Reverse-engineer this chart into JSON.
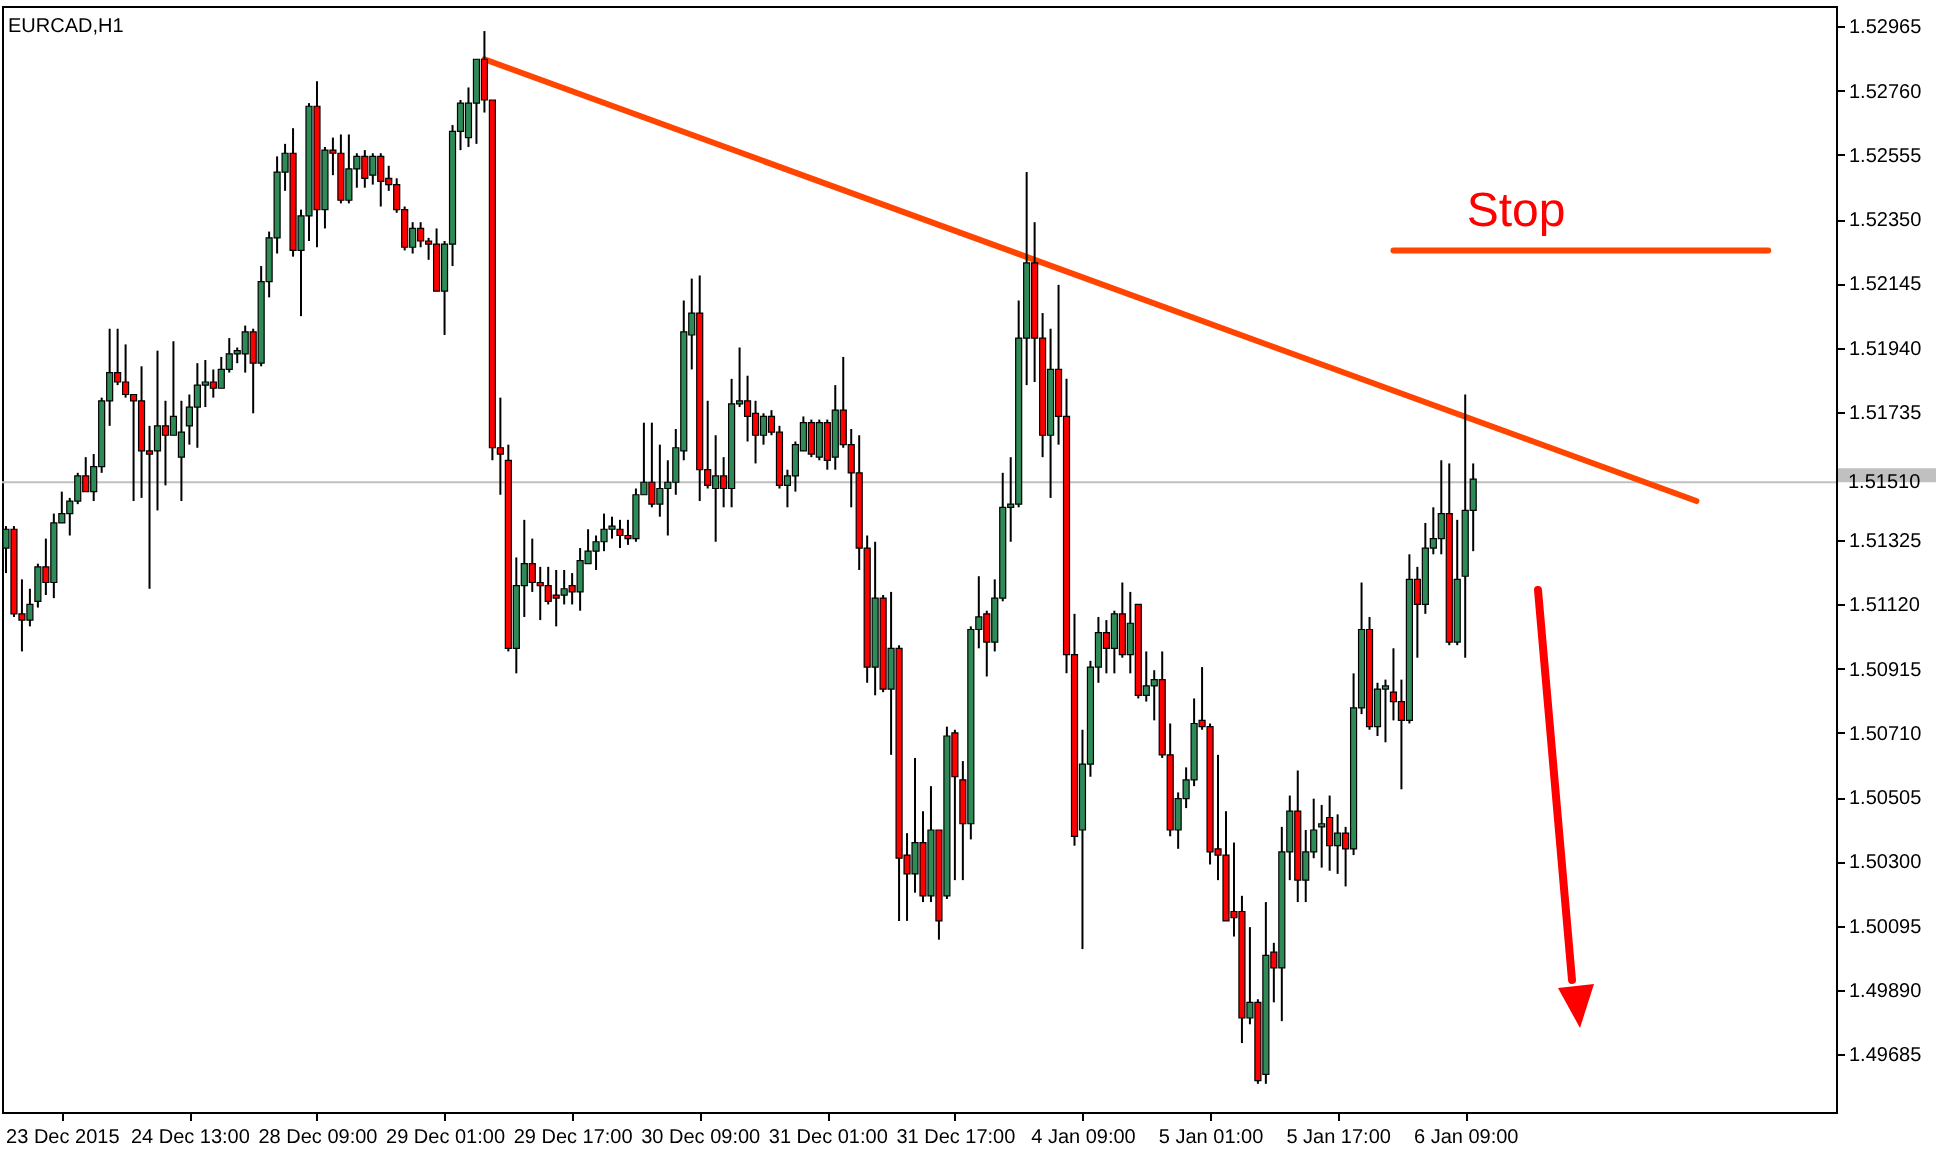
{
  "chart_data": {
    "type": "candlestick",
    "title": "EURCAD,H1",
    "categories": [
      null,
      null,
      null,
      null,
      null,
      null,
      null,
      "23 Dec 2015",
      null,
      null,
      null,
      null,
      null,
      null,
      null,
      null,
      null,
      null,
      null,
      null,
      null,
      null,
      null,
      "24 Dec 13:00",
      null,
      null,
      null,
      null,
      null,
      null,
      null,
      null,
      null,
      null,
      null,
      null,
      null,
      null,
      null,
      "28 Dec 09:00",
      null,
      null,
      null,
      null,
      null,
      null,
      null,
      null,
      null,
      null,
      null,
      null,
      null,
      null,
      null,
      "29 Dec 01:00",
      null,
      null,
      null,
      null,
      null,
      null,
      null,
      null,
      null,
      null,
      null,
      null,
      null,
      null,
      null,
      "29 Dec 17:00",
      null,
      null,
      null,
      null,
      null,
      null,
      null,
      null,
      null,
      null,
      null,
      null,
      null,
      null,
      null,
      "30 Dec 09:00",
      null,
      null,
      null,
      null,
      null,
      null,
      null,
      null,
      null,
      null,
      null,
      null,
      null,
      null,
      null,
      "31 Dec 01:00",
      null,
      null,
      null,
      null,
      null,
      null,
      null,
      null,
      null,
      null,
      null,
      null,
      null,
      null,
      null,
      "31 Dec 17:00",
      null,
      null,
      null,
      null,
      null,
      null,
      null,
      null,
      null,
      null,
      null,
      null,
      null,
      null,
      null,
      "4 Jan 09:00",
      null,
      null,
      null,
      null,
      null,
      null,
      null,
      null,
      null,
      null,
      null,
      null,
      null,
      null,
      null,
      "5 Jan 01:00",
      null,
      null,
      null,
      null,
      null,
      null,
      null,
      null,
      null,
      null,
      null,
      null,
      null,
      null,
      null,
      "5 Jan 17:00",
      null,
      null,
      null,
      null,
      null,
      null,
      null,
      null,
      null,
      null,
      null,
      null,
      null,
      null,
      null,
      "6 Jan 09:00",
      null,
      null,
      null,
      null,
      null,
      null,
      null,
      null,
      null,
      null,
      null,
      null,
      null,
      null,
      null,
      null,
      null,
      null,
      null,
      null,
      null,
      null,
      null,
      null,
      null,
      null,
      null,
      null,
      null,
      null,
      null,
      null,
      null,
      null,
      null,
      null,
      null,
      null,
      null,
      null,
      null,
      null,
      null,
      null,
      null,
      null
    ],
    "ohlc": [
      [
        1.513,
        1.5137,
        1.5122,
        1.5136
      ],
      [
        1.5136,
        1.5137,
        1.5108,
        1.5109
      ],
      [
        1.5109,
        1.512,
        1.5097,
        1.5107
      ],
      [
        1.5107,
        1.5117,
        1.5105,
        1.5112
      ],
      [
        1.5113,
        1.5125,
        1.5111,
        1.5124
      ],
      [
        1.5124,
        1.5133,
        1.5115,
        1.5119
      ],
      [
        1.5119,
        1.5141,
        1.5114,
        1.5138
      ],
      [
        1.5138,
        1.5148,
        1.5138,
        1.5141
      ],
      [
        1.5141,
        1.5146,
        1.5134,
        1.5145
      ],
      [
        1.5145,
        1.5154,
        1.5144,
        1.5153
      ],
      [
        1.5153,
        1.5159,
        1.5148,
        1.5148
      ],
      [
        1.5148,
        1.516,
        1.5145,
        1.5156
      ],
      [
        1.5156,
        1.5178,
        1.5154,
        1.5177
      ],
      [
        1.5177,
        1.52,
        1.5169,
        1.5186
      ],
      [
        1.5186,
        1.52,
        1.5182,
        1.5183
      ],
      [
        1.5183,
        1.5195,
        1.5178,
        1.5179
      ],
      [
        1.5179,
        1.5179,
        1.5145,
        1.5177
      ],
      [
        1.5177,
        1.5188,
        1.5146,
        1.5161
      ],
      [
        1.5161,
        1.5169,
        1.5117,
        1.516
      ],
      [
        1.5161,
        1.5193,
        1.5142,
        1.5169
      ],
      [
        1.5169,
        1.5177,
        1.515,
        1.5166
      ],
      [
        1.5166,
        1.5196,
        1.5166,
        1.5172
      ],
      [
        1.5159,
        1.5177,
        1.5145,
        1.5167
      ],
      [
        1.5169,
        1.5179,
        1.5163,
        1.5175
      ],
      [
        1.5175,
        1.5189,
        1.5162,
        1.5182
      ],
      [
        1.5182,
        1.519,
        1.5175,
        1.5183
      ],
      [
        1.5183,
        1.5187,
        1.5178,
        1.5181
      ],
      [
        1.5181,
        1.5191,
        1.5181,
        1.5187
      ],
      [
        1.5187,
        1.5197,
        1.5186,
        1.5192
      ],
      [
        1.5192,
        1.5194,
        1.5189,
        1.5193
      ],
      [
        1.5192,
        1.5201,
        1.5186,
        1.5199
      ],
      [
        1.5199,
        1.52,
        1.5173,
        1.5189
      ],
      [
        1.5189,
        1.522,
        1.5188,
        1.5215
      ],
      [
        1.5215,
        1.5231,
        1.521,
        1.5229
      ],
      [
        1.5229,
        1.5255,
        1.5224,
        1.525
      ],
      [
        1.525,
        1.5259,
        1.5244,
        1.5256
      ],
      [
        1.5256,
        1.5264,
        1.5223,
        1.5225
      ],
      [
        1.5225,
        1.5238,
        1.5204,
        1.5236
      ],
      [
        1.5236,
        1.5272,
        1.5228,
        1.5271
      ],
      [
        1.5271,
        1.5279,
        1.5226,
        1.5238
      ],
      [
        1.5238,
        1.5258,
        1.5232,
        1.5257
      ],
      [
        1.5257,
        1.5261,
        1.5249,
        1.5256
      ],
      [
        1.5256,
        1.5262,
        1.524,
        1.5241
      ],
      [
        1.5241,
        1.5262,
        1.524,
        1.5251
      ],
      [
        1.5251,
        1.5256,
        1.5245,
        1.5255
      ],
      [
        1.5255,
        1.5257,
        1.5245,
        1.5248
      ],
      [
        1.5249,
        1.5256,
        1.5246,
        1.5255
      ],
      [
        1.5255,
        1.5256,
        1.5239,
        1.5247
      ],
      [
        1.5248,
        1.5252,
        1.5244,
        1.5246
      ],
      [
        1.5246,
        1.5248,
        1.5237,
        1.5238
      ],
      [
        1.5238,
        1.5239,
        1.5225,
        1.5226
      ],
      [
        1.5226,
        1.5234,
        1.5224,
        1.5232
      ],
      [
        1.5232,
        1.5234,
        1.5226,
        1.5228
      ],
      [
        1.5228,
        1.5229,
        1.5222,
        1.5227
      ],
      [
        1.5227,
        1.5232,
        1.5212,
        1.5212
      ],
      [
        1.5212,
        1.5228,
        1.5198,
        1.5227
      ],
      [
        1.5227,
        1.5265,
        1.522,
        1.5263
      ],
      [
        1.5263,
        1.5273,
        1.5257,
        1.5272
      ],
      [
        1.5261,
        1.5277,
        1.5258,
        1.5272
      ],
      [
        1.5272,
        1.5286,
        1.5259,
        1.5286
      ],
      [
        1.5286,
        1.5295,
        1.5269,
        1.5273
      ],
      [
        1.5273,
        1.5273,
        1.5158,
        1.5162
      ],
      [
        1.5162,
        1.5178,
        1.5147,
        1.516
      ],
      [
        1.5158,
        1.5163,
        1.5097,
        1.5098
      ],
      [
        1.5098,
        1.5127,
        1.509,
        1.5118
      ],
      [
        1.5118,
        1.5139,
        1.5108,
        1.5125
      ],
      [
        1.5125,
        1.5133,
        1.5116,
        1.5119
      ],
      [
        1.5119,
        1.5124,
        1.5107,
        1.5118
      ],
      [
        1.5118,
        1.5124,
        1.5112,
        1.5113
      ],
      [
        1.5115,
        1.5123,
        1.5105,
        1.5114
      ],
      [
        1.5115,
        1.5123,
        1.5112,
        1.5117
      ],
      [
        1.5118,
        1.5122,
        1.5112,
        1.5116
      ],
      [
        1.5116,
        1.513,
        1.511,
        1.5126
      ],
      [
        1.5125,
        1.5136,
        1.5125,
        1.5129
      ],
      [
        1.5129,
        1.5134,
        1.5123,
        1.5132
      ],
      [
        1.5132,
        1.5141,
        1.5129,
        1.5136
      ],
      [
        1.5136,
        1.514,
        1.5133,
        1.5137
      ],
      [
        1.5136,
        1.5139,
        1.513,
        1.5134
      ],
      [
        1.5134,
        1.5139,
        1.5131,
        1.5133
      ],
      [
        1.5133,
        1.5149,
        1.5132,
        1.5147
      ],
      [
        1.5147,
        1.517,
        1.5147,
        1.5151
      ],
      [
        1.5151,
        1.517,
        1.5143,
        1.5144
      ],
      [
        1.5144,
        1.5163,
        1.514,
        1.5149
      ],
      [
        1.5149,
        1.5158,
        1.5134,
        1.5151
      ],
      [
        1.5151,
        1.5168,
        1.5147,
        1.5162
      ],
      [
        1.5161,
        1.5209,
        1.5158,
        1.5199
      ],
      [
        1.5198,
        1.5216,
        1.5187,
        1.5205
      ],
      [
        1.5205,
        1.5217,
        1.5145,
        1.5155
      ],
      [
        1.5155,
        1.5177,
        1.5149,
        1.515
      ],
      [
        1.5149,
        1.5166,
        1.5132,
        1.5153
      ],
      [
        1.5153,
        1.5159,
        1.5143,
        1.5149
      ],
      [
        1.5149,
        1.5184,
        1.5143,
        1.5176
      ],
      [
        1.5176,
        1.5194,
        1.5175,
        1.5177
      ],
      [
        1.5177,
        1.5185,
        1.5164,
        1.5172
      ],
      [
        1.5173,
        1.5177,
        1.5157,
        1.5166
      ],
      [
        1.5166,
        1.5173,
        1.5163,
        1.5172
      ],
      [
        1.5172,
        1.5174,
        1.5166,
        1.5167
      ],
      [
        1.5167,
        1.5169,
        1.5149,
        1.515
      ],
      [
        1.515,
        1.5155,
        1.5143,
        1.5153
      ],
      [
        1.5153,
        1.5164,
        1.5148,
        1.5163
      ],
      [
        1.5161,
        1.5172,
        1.5161,
        1.517
      ],
      [
        1.517,
        1.5171,
        1.5159,
        1.516
      ],
      [
        1.5159,
        1.5171,
        1.5158,
        1.517
      ],
      [
        1.517,
        1.5171,
        1.5155,
        1.5158
      ],
      [
        1.5159,
        1.5182,
        1.5155,
        1.5174
      ],
      [
        1.5174,
        1.5191,
        1.5162,
        1.5163
      ],
      [
        1.5163,
        1.5168,
        1.5143,
        1.5154
      ],
      [
        1.5154,
        1.5166,
        1.5123,
        1.513
      ],
      [
        1.513,
        1.5134,
        1.5087,
        1.5092
      ],
      [
        1.5092,
        1.5132,
        1.5083,
        1.5114
      ],
      [
        1.5114,
        1.5115,
        1.5084,
        1.5085
      ],
      [
        1.5085,
        1.5116,
        1.5064,
        1.5098
      ],
      [
        1.5098,
        1.5099,
        1.5011,
        1.5031
      ],
      [
        1.5032,
        1.5039,
        1.5011,
        1.5026
      ],
      [
        1.5026,
        1.5063,
        1.502,
        1.5036
      ],
      [
        1.5036,
        1.5046,
        1.5017,
        1.5019
      ],
      [
        1.5019,
        1.5054,
        1.5017,
        1.504
      ],
      [
        1.504,
        1.504,
        1.5005,
        1.5011
      ],
      [
        1.5019,
        1.5073,
        1.5018,
        1.507
      ],
      [
        1.5071,
        1.5072,
        1.5024,
        1.5057
      ],
      [
        1.5056,
        1.5062,
        1.5024,
        1.5042
      ],
      [
        1.5042,
        1.5105,
        1.5037,
        1.5104
      ],
      [
        1.5104,
        1.5121,
        1.5098,
        1.5108
      ],
      [
        1.5109,
        1.511,
        1.5089,
        1.51
      ],
      [
        1.51,
        1.512,
        1.5097,
        1.5114
      ],
      [
        1.5114,
        1.5154,
        1.5113,
        1.5143
      ],
      [
        1.5143,
        1.5159,
        1.5132,
        1.5144
      ],
      [
        1.5144,
        1.5209,
        1.5143,
        1.5197
      ],
      [
        1.5197,
        1.525,
        1.5182,
        1.5221
      ],
      [
        1.5221,
        1.5234,
        1.5183,
        1.5197
      ],
      [
        1.5197,
        1.5205,
        1.5159,
        1.5166
      ],
      [
        1.5166,
        1.52,
        1.5146,
        1.5187
      ],
      [
        1.5187,
        1.5214,
        1.5163,
        1.5172
      ],
      [
        1.5172,
        1.5184,
        1.509,
        1.5096
      ],
      [
        1.5096,
        1.5109,
        1.5035,
        1.5038
      ],
      [
        1.504,
        1.5072,
        1.5002,
        1.5061
      ],
      [
        1.5061,
        1.5094,
        1.5057,
        1.5092
      ],
      [
        1.5092,
        1.5108,
        1.5087,
        1.5103
      ],
      [
        1.5103,
        1.5107,
        1.509,
        1.5098
      ],
      [
        1.5098,
        1.511,
        1.509,
        1.5109
      ],
      [
        1.5109,
        1.5119,
        1.5095,
        1.5096
      ],
      [
        1.5096,
        1.5116,
        1.509,
        1.5106
      ],
      [
        1.5112,
        1.5112,
        1.5082,
        1.5083
      ],
      [
        1.5083,
        1.5097,
        1.5081,
        1.5086
      ],
      [
        1.5086,
        1.5091,
        1.5075,
        1.5088
      ],
      [
        1.5088,
        1.5097,
        1.5063,
        1.5064
      ],
      [
        1.5064,
        1.5074,
        1.5038,
        1.504
      ],
      [
        1.504,
        1.5052,
        1.5034,
        1.505
      ],
      [
        1.505,
        1.506,
        1.5047,
        1.5056
      ],
      [
        1.5056,
        1.5082,
        1.5054,
        1.5074
      ],
      [
        1.5075,
        1.5092,
        1.5072,
        1.5073
      ],
      [
        1.5073,
        1.5074,
        1.5029,
        1.5033
      ],
      [
        1.5034,
        1.5064,
        1.5024,
        1.5032
      ],
      [
        1.5032,
        1.5046,
        1.5011,
        1.5011
      ],
      [
        1.5014,
        1.5036,
        1.5006,
        1.5012
      ],
      [
        1.5014,
        1.5019,
        1.4972,
        1.498
      ],
      [
        1.498,
        1.5009,
        1.4978,
        1.4985
      ],
      [
        1.4985,
        1.4986,
        1.4959,
        1.496
      ],
      [
        1.4962,
        1.5017,
        1.4959,
        1.5
      ],
      [
        1.5001,
        1.5004,
        1.4985,
        1.4996
      ],
      [
        1.4996,
        1.5041,
        1.4979,
        1.5033
      ],
      [
        1.5033,
        1.5051,
        1.5024,
        1.5046
      ],
      [
        1.5046,
        1.5059,
        1.5017,
        1.5024
      ],
      [
        1.5024,
        1.504,
        1.5017,
        1.5033
      ],
      [
        1.5033,
        1.505,
        1.5031,
        1.504
      ],
      [
        1.5041,
        1.5048,
        1.5028,
        1.5042
      ],
      [
        1.5044,
        1.5051,
        1.5027,
        1.5035
      ],
      [
        1.5035,
        1.5045,
        1.5026,
        1.5039
      ],
      [
        1.5039,
        1.5041,
        1.5022,
        1.5034
      ],
      [
        1.5034,
        1.509,
        1.5032,
        1.5079
      ],
      [
        1.5079,
        1.5119,
        1.5077,
        1.5104
      ],
      [
        1.5104,
        1.5108,
        1.5072,
        1.5073
      ],
      [
        1.5073,
        1.5087,
        1.507,
        1.5085
      ],
      [
        1.5085,
        1.5088,
        1.5068,
        1.5086
      ],
      [
        1.5084,
        1.5098,
        1.5075,
        1.5081
      ],
      [
        1.5081,
        1.5088,
        1.5053,
        1.5075
      ],
      [
        1.5075,
        1.5128,
        1.5074,
        1.512
      ],
      [
        1.512,
        1.5124,
        1.5095,
        1.5112
      ],
      [
        1.5112,
        1.5138,
        1.5109,
        1.513
      ],
      [
        1.513,
        1.5143,
        1.5128,
        1.5133
      ],
      [
        1.5133,
        1.5158,
        1.5128,
        1.5141
      ],
      [
        1.5141,
        1.5157,
        1.5099,
        1.51
      ],
      [
        1.51,
        1.5139,
        1.5099,
        1.512
      ],
      [
        1.5121,
        1.5179,
        1.5095,
        1.5142
      ],
      [
        1.5142,
        1.5157,
        1.5129,
        1.5152
      ],
      null,
      null,
      null,
      null,
      null,
      null,
      null,
      null,
      null,
      null,
      null,
      null,
      null,
      null,
      null,
      null,
      null,
      null,
      null,
      null,
      null,
      null,
      null,
      null,
      null,
      null,
      null,
      null,
      null,
      null,
      null,
      null,
      null,
      null,
      null,
      null,
      null,
      null,
      null,
      null,
      null,
      null,
      null,
      null,
      null
    ],
    "colors": [
      "#2e8b57",
      "#ff0000",
      "#ff0000",
      "#2e8b57",
      "#2e8b57",
      "#ff0000",
      "#2e8b57",
      "#2e8b57",
      "#2e8b57",
      "#2e8b57",
      "#ff0000",
      "#2e8b57",
      "#2e8b57",
      "#2e8b57",
      "#ff0000",
      "#ff0000",
      "#ff0000",
      "#ff0000",
      "#ff0000",
      "#2e8b57",
      "#ff0000",
      "#2e8b57",
      "#2e8b57",
      "#2e8b57",
      "#2e8b57",
      "#2e8b57",
      "#ff0000",
      "#2e8b57",
      "#2e8b57",
      "#2e8b57",
      "#2e8b57",
      "#ff0000",
      "#2e8b57",
      "#2e8b57",
      "#2e8b57",
      "#2e8b57",
      "#ff0000",
      "#2e8b57",
      "#2e8b57",
      "#ff0000",
      "#2e8b57",
      "#ff0000",
      "#ff0000",
      "#2e8b57",
      "#2e8b57",
      "#ff0000",
      "#2e8b57",
      "#ff0000",
      "#ff0000",
      "#ff0000",
      "#ff0000",
      "#2e8b57",
      "#ff0000",
      "#ff0000",
      "#ff0000",
      "#2e8b57",
      "#2e8b57",
      "#2e8b57",
      "#2e8b57",
      "#2e8b57",
      "#ff0000",
      "#ff0000",
      "#ff0000",
      "#ff0000",
      "#2e8b57",
      "#2e8b57",
      "#ff0000",
      "#ff0000",
      "#ff0000",
      "#ff0000",
      "#2e8b57",
      "#ff0000",
      "#2e8b57",
      "#2e8b57",
      "#2e8b57",
      "#2e8b57",
      "#2e8b57",
      "#ff0000",
      "#ff0000",
      "#2e8b57",
      "#2e8b57",
      "#ff0000",
      "#2e8b57",
      "#2e8b57",
      "#2e8b57",
      "#2e8b57",
      "#2e8b57",
      "#ff0000",
      "#ff0000",
      "#2e8b57",
      "#ff0000",
      "#2e8b57",
      "#2e8b57",
      "#ff0000",
      "#ff0000",
      "#2e8b57",
      "#ff0000",
      "#ff0000",
      "#2e8b57",
      "#2e8b57",
      "#2e8b57",
      "#ff0000",
      "#2e8b57",
      "#ff0000",
      "#2e8b57",
      "#ff0000",
      "#ff0000",
      "#ff0000",
      "#ff0000",
      "#2e8b57",
      "#ff0000",
      "#2e8b57",
      "#ff0000",
      "#ff0000",
      "#2e8b57",
      "#ff0000",
      "#2e8b57",
      "#ff0000",
      "#2e8b57",
      "#ff0000",
      "#ff0000",
      "#2e8b57",
      "#2e8b57",
      "#ff0000",
      "#2e8b57",
      "#2e8b57",
      "#2e8b57",
      "#2e8b57",
      "#2e8b57",
      "#ff0000",
      "#ff0000",
      "#2e8b57",
      "#ff0000",
      "#ff0000",
      "#ff0000",
      "#2e8b57",
      "#2e8b57",
      "#2e8b57",
      "#ff0000",
      "#2e8b57",
      "#ff0000",
      "#2e8b57",
      "#ff0000",
      "#2e8b57",
      "#2e8b57",
      "#ff0000",
      "#ff0000",
      "#2e8b57",
      "#2e8b57",
      "#2e8b57",
      "#ff0000",
      "#ff0000",
      "#ff0000",
      "#ff0000",
      "#ff0000",
      "#ff0000",
      "#2e8b57",
      "#ff0000",
      "#2e8b57",
      "#ff0000",
      "#2e8b57",
      "#2e8b57",
      "#ff0000",
      "#2e8b57",
      "#2e8b57",
      "#2e8b57",
      "#ff0000",
      "#2e8b57",
      "#ff0000",
      "#2e8b57",
      "#2e8b57",
      "#ff0000",
      "#2e8b57",
      "#2e8b57",
      "#ff0000",
      "#ff0000",
      "#2e8b57",
      "#ff0000",
      "#2e8b57",
      "#2e8b57",
      "#2e8b57",
      "#ff0000",
      "#2e8b57",
      "#2e8b57",
      "#2e8b57",
      null,
      null,
      null,
      null,
      null,
      null,
      null,
      null,
      null,
      null,
      null,
      null,
      null,
      null,
      null,
      null,
      null,
      null,
      null,
      null,
      null,
      null,
      null,
      null,
      null,
      null,
      null,
      null,
      null,
      null,
      null,
      null,
      null,
      null,
      null,
      null,
      null,
      null,
      null,
      null,
      null,
      null,
      null,
      null,
      null
    ],
    "series": [
      {
        "type": "line",
        "color": "#ff4500",
        "values": [
          null,
          null,
          null,
          null,
          null,
          null,
          null,
          null,
          null,
          null,
          null,
          null,
          null,
          null,
          null,
          null,
          null,
          null,
          null,
          null,
          null,
          null,
          null,
          null,
          null,
          null,
          null,
          null,
          null,
          null,
          null,
          null,
          null,
          null,
          null,
          null,
          null,
          null,
          null,
          null,
          null,
          null,
          null,
          null,
          null,
          null,
          null,
          null,
          null,
          null,
          null,
          null,
          null,
          null,
          null,
          null,
          null,
          null,
          null,
          null,
          1.5286,
          null,
          null,
          null,
          null,
          null,
          null,
          null,
          null,
          null,
          null,
          null,
          null,
          null,
          null,
          null,
          null,
          null,
          null,
          null,
          null,
          null,
          null,
          null,
          null,
          null,
          null,
          null,
          null,
          null,
          null,
          null,
          null,
          null,
          null,
          null,
          null,
          null,
          null,
          null,
          null,
          null,
          null,
          null,
          null,
          null,
          null,
          null,
          null,
          null,
          null,
          null,
          null,
          null,
          null,
          null,
          null,
          null,
          null,
          null,
          null,
          null,
          null,
          null,
          null,
          null,
          null,
          null,
          null,
          null,
          null,
          null,
          null,
          null,
          null,
          null,
          null,
          null,
          null,
          null,
          null,
          null,
          null,
          null,
          null,
          null,
          null,
          null,
          null,
          null,
          null,
          null,
          null,
          null,
          null,
          null,
          null,
          null,
          null,
          null,
          null,
          null,
          null,
          null,
          null,
          null,
          null,
          null,
          null,
          null,
          null,
          null,
          null,
          null,
          null,
          null,
          null,
          null,
          null,
          null,
          null,
          null,
          null,
          null,
          null,
          null,
          null,
          null,
          null,
          null,
          null,
          null,
          null,
          null,
          null,
          null,
          null,
          null,
          null,
          null,
          null,
          null,
          null,
          null,
          null,
          null,
          null,
          null,
          null,
          null,
          null,
          null,
          1.5145,
          null,
          null,
          null,
          null,
          null,
          null,
          null,
          null,
          null,
          null,
          null,
          null,
          null,
          null,
          null,
          null,
          null
        ]
      },
      {
        "type": "line",
        "color": "#ff4500",
        "values": [
          null,
          null,
          null,
          null,
          null,
          null,
          null,
          null,
          null,
          null,
          null,
          null,
          null,
          null,
          null,
          null,
          null,
          null,
          null,
          null,
          null,
          null,
          null,
          null,
          null,
          null,
          null,
          null,
          null,
          null,
          null,
          null,
          null,
          null,
          null,
          null,
          null,
          null,
          null,
          null,
          null,
          null,
          null,
          null,
          null,
          null,
          null,
          null,
          null,
          null,
          null,
          null,
          null,
          null,
          null,
          null,
          null,
          null,
          null,
          null,
          null,
          null,
          null,
          null,
          null,
          null,
          null,
          null,
          null,
          null,
          null,
          null,
          null,
          null,
          null,
          null,
          null,
          null,
          null,
          null,
          null,
          null,
          null,
          null,
          null,
          null,
          null,
          null,
          null,
          null,
          null,
          null,
          null,
          null,
          null,
          null,
          null,
          null,
          null,
          null,
          null,
          null,
          null,
          null,
          null,
          null,
          null,
          null,
          null,
          null,
          null,
          null,
          null,
          null,
          null,
          null,
          null,
          null,
          null,
          null,
          null,
          null,
          null,
          null,
          null,
          null,
          null,
          null,
          null,
          null,
          null,
          null,
          null,
          null,
          null,
          null,
          null,
          null,
          null,
          null,
          null,
          null,
          null,
          null,
          null,
          null,
          null,
          null,
          null,
          null,
          null,
          null,
          null,
          null,
          null,
          null,
          null,
          null,
          null,
          null,
          null,
          null,
          null,
          null,
          null,
          null,
          null,
          null,
          null,
          null,
          null,
          null,
          null,
          null,
          1.5225,
          null,
          null,
          null,
          null,
          null,
          null,
          null,
          null,
          null,
          null,
          null,
          null,
          null,
          null,
          null,
          null,
          null,
          null,
          null,
          null,
          null,
          null,
          null,
          null,
          null,
          null,
          null,
          null,
          null,
          null,
          null,
          null,
          null,
          null,
          null,
          null,
          null,
          null,
          null,
          null,
          null,
          null,
          null,
          null,
          null,
          null,
          1.5225,
          null,
          null,
          null,
          null,
          null,
          null,
          null,
          null
        ]
      }
    ],
    "ylim": [
      1.495,
      1.5303
    ],
    "yticks": [
      1.49685,
      {
        "value": 1.4989,
        "label": "1.49890"
      },
      1.50095,
      {
        "value": 1.503,
        "label": "1.50300"
      },
      1.50505,
      {
        "value": 1.5071,
        "label": "1.50710"
      },
      1.50915,
      {
        "value": 1.5112,
        "label": "1.51120"
      },
      1.51325,
      1.51735,
      {
        "value": 1.5194,
        "label": "1.51940"
      },
      1.52145,
      {
        "value": 1.5235,
        "label": "1.52350"
      },
      1.52555,
      {
        "value": 1.5276,
        "label": "1.52760"
      },
      1.52965
    ],
    "ref_lines": [
      {
        "axis": "y",
        "value": 1.5151,
        "label": "1.51510",
        "color": "#c0c0c0"
      }
    ],
    "annotations": [
      "Stop"
    ]
  }
}
